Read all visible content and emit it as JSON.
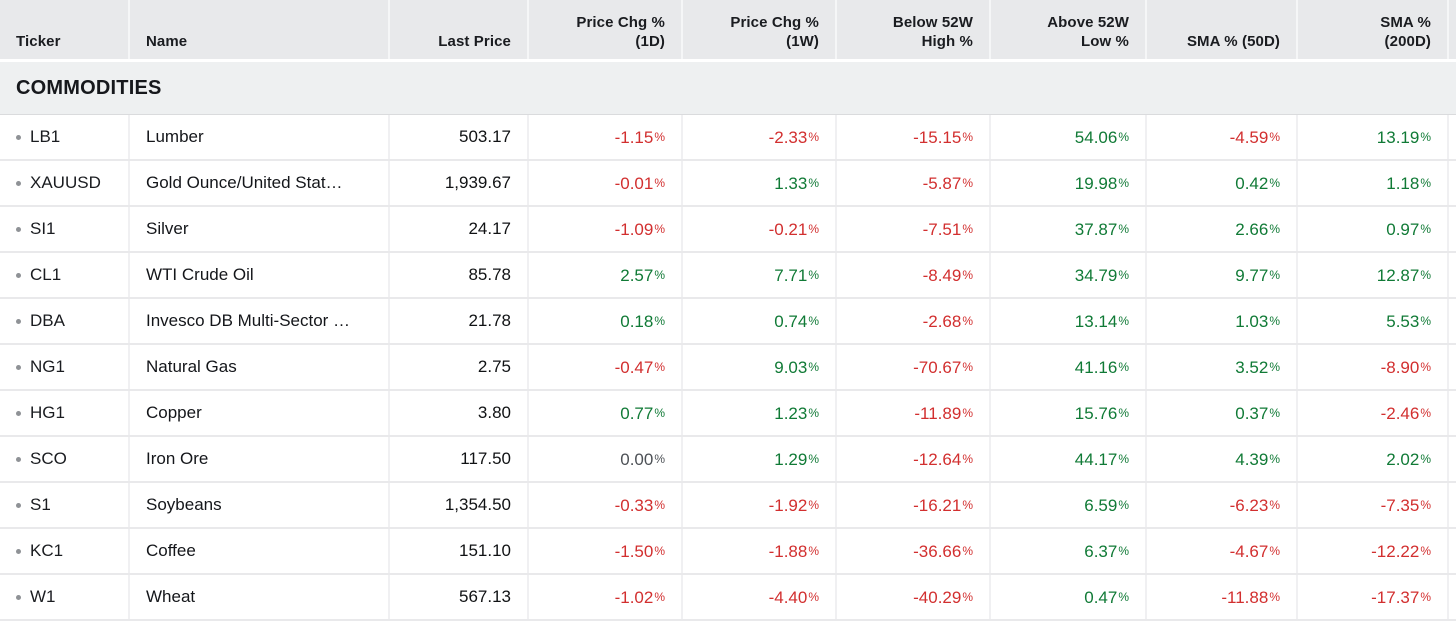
{
  "table": {
    "section": "COMMODITIES",
    "columns": [
      {
        "key": "ticker",
        "label_lines": [
          "Ticker"
        ],
        "align": "left"
      },
      {
        "key": "name",
        "label_lines": [
          "Name"
        ],
        "align": "left"
      },
      {
        "key": "last_price",
        "label_lines": [
          "Last Price"
        ],
        "align": "right"
      },
      {
        "key": "chg_1d",
        "label_lines": [
          "Price Chg %",
          "(1D)"
        ],
        "align": "right"
      },
      {
        "key": "chg_1w",
        "label_lines": [
          "Price Chg %",
          "(1W)"
        ],
        "align": "right"
      },
      {
        "key": "below_high",
        "label_lines": [
          "Below 52W",
          "High %"
        ],
        "align": "right"
      },
      {
        "key": "above_low",
        "label_lines": [
          "Above 52W",
          "Low %"
        ],
        "align": "right"
      },
      {
        "key": "sma50",
        "label_lines": [
          "SMA % (50D)"
        ],
        "align": "right"
      },
      {
        "key": "sma200",
        "label_lines": [
          "SMA %",
          "(200D)"
        ],
        "align": "right"
      }
    ],
    "rows": [
      {
        "ticker": "LB1",
        "name": "Lumber",
        "last_price": "503.17",
        "chg_1d": "-1.15",
        "chg_1w": "-2.33",
        "below_high": "-15.15",
        "above_low": "54.06",
        "sma50": "-4.59",
        "sma200": "13.19"
      },
      {
        "ticker": "XAUUSD",
        "name": "Gold Ounce/United Stat…",
        "last_price": "1,939.67",
        "chg_1d": "-0.01",
        "chg_1w": "1.33",
        "below_high": "-5.87",
        "above_low": "19.98",
        "sma50": "0.42",
        "sma200": "1.18"
      },
      {
        "ticker": "SI1",
        "name": "Silver",
        "last_price": "24.17",
        "chg_1d": "-1.09",
        "chg_1w": "-0.21",
        "below_high": "-7.51",
        "above_low": "37.87",
        "sma50": "2.66",
        "sma200": "0.97"
      },
      {
        "ticker": "CL1",
        "name": "WTI Crude Oil",
        "last_price": "85.78",
        "chg_1d": "2.57",
        "chg_1w": "7.71",
        "below_high": "-8.49",
        "above_low": "34.79",
        "sma50": "9.77",
        "sma200": "12.87"
      },
      {
        "ticker": "DBA",
        "name": "Invesco DB Multi-Sector …",
        "last_price": "21.78",
        "chg_1d": "0.18",
        "chg_1w": "0.74",
        "below_high": "-2.68",
        "above_low": "13.14",
        "sma50": "1.03",
        "sma200": "5.53"
      },
      {
        "ticker": "NG1",
        "name": "Natural Gas",
        "last_price": "2.75",
        "chg_1d": "-0.47",
        "chg_1w": "9.03",
        "below_high": "-70.67",
        "above_low": "41.16",
        "sma50": "3.52",
        "sma200": "-8.90"
      },
      {
        "ticker": "HG1",
        "name": "Copper",
        "last_price": "3.80",
        "chg_1d": "0.77",
        "chg_1w": "1.23",
        "below_high": "-11.89",
        "above_low": "15.76",
        "sma50": "0.37",
        "sma200": "-2.46"
      },
      {
        "ticker": "SCO",
        "name": "Iron Ore",
        "last_price": "117.50",
        "chg_1d": "0.00",
        "chg_1w": "1.29",
        "below_high": "-12.64",
        "above_low": "44.17",
        "sma50": "4.39",
        "sma200": "2.02"
      },
      {
        "ticker": "S1",
        "name": "Soybeans",
        "last_price": "1,354.50",
        "chg_1d": "-0.33",
        "chg_1w": "-1.92",
        "below_high": "-16.21",
        "above_low": "6.59",
        "sma50": "-6.23",
        "sma200": "-7.35"
      },
      {
        "ticker": "KC1",
        "name": "Coffee",
        "last_price": "151.10",
        "chg_1d": "-1.50",
        "chg_1w": "-1.88",
        "below_high": "-36.66",
        "above_low": "6.37",
        "sma50": "-4.67",
        "sma200": "-12.22"
      },
      {
        "ticker": "W1",
        "name": "Wheat",
        "last_price": "567.13",
        "chg_1d": "-1.02",
        "chg_1w": "-4.40",
        "below_high": "-40.29",
        "above_low": "0.47",
        "sma50": "-11.88",
        "sma200": "-17.37"
      }
    ],
    "percent_suffix": "%"
  },
  "colors": {
    "positive": "#107a36",
    "negative": "#d22f2f",
    "neutral_zero": "#4d5156"
  }
}
